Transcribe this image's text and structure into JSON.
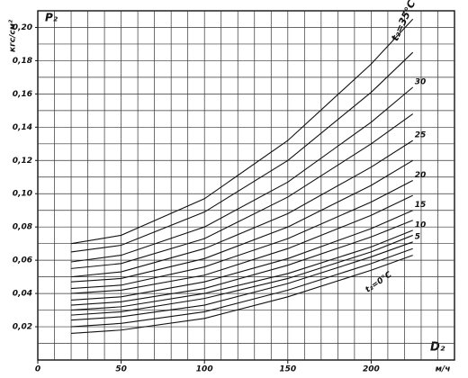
{
  "chart_data": {
    "type": "line",
    "y_label": "кгс/см²",
    "y_symbol": "P₂",
    "x_label": "D₂",
    "x_unit": "м/ч",
    "x": [
      20,
      50,
      100,
      150,
      200,
      225
    ],
    "xlim": [
      0,
      250
    ],
    "ylim": [
      0,
      0.21
    ],
    "xticks": [
      0,
      50,
      100,
      150,
      200
    ],
    "yticks": [
      {
        "value": 0.02,
        "label": "0,02"
      },
      {
        "value": 0.04,
        "label": "0,04"
      },
      {
        "value": 0.06,
        "label": "0,06"
      },
      {
        "value": 0.08,
        "label": "0,08"
      },
      {
        "value": 0.1,
        "label": "0,10"
      },
      {
        "value": 0.12,
        "label": "0,12"
      },
      {
        "value": 0.14,
        "label": "0,14"
      },
      {
        "value": 0.16,
        "label": "0,16"
      },
      {
        "value": 0.18,
        "label": "0,18"
      },
      {
        "value": 0.2,
        "label": "0,20"
      }
    ],
    "x_grid": [
      10,
      20,
      30,
      40,
      50,
      60,
      70,
      80,
      90,
      100,
      110,
      120,
      130,
      140,
      150,
      160,
      170,
      180,
      190,
      200,
      210,
      220,
      230,
      240
    ],
    "y_grid": [
      0.01,
      0.02,
      0.03,
      0.04,
      0.05,
      0.06,
      0.07,
      0.08,
      0.09,
      0.1,
      0.11,
      0.12,
      0.13,
      0.14,
      0.15,
      0.16,
      0.17,
      0.18,
      0.19,
      0.2
    ],
    "grid": true,
    "color": "#111111",
    "series": [
      {
        "name": "t₂=0°C",
        "values": [
          0.016,
          0.018,
          0.025,
          0.038,
          0.054,
          0.063
        ]
      },
      {
        "values": [
          0.02,
          0.022,
          0.029,
          0.042,
          0.058,
          0.067
        ]
      },
      {
        "name": "5",
        "values": [
          0.024,
          0.026,
          0.033,
          0.046,
          0.062,
          0.071
        ]
      },
      {
        "values": [
          0.027,
          0.029,
          0.037,
          0.049,
          0.065,
          0.075
        ]
      },
      {
        "name": "10",
        "values": [
          0.03,
          0.032,
          0.04,
          0.052,
          0.068,
          0.078
        ]
      },
      {
        "values": [
          0.033,
          0.035,
          0.043,
          0.057,
          0.074,
          0.084
        ]
      },
      {
        "name": "15",
        "values": [
          0.036,
          0.038,
          0.047,
          0.061,
          0.079,
          0.09
        ]
      },
      {
        "values": [
          0.04,
          0.042,
          0.051,
          0.067,
          0.087,
          0.099
        ]
      },
      {
        "name": "20",
        "values": [
          0.043,
          0.045,
          0.056,
          0.073,
          0.095,
          0.108
        ]
      },
      {
        "values": [
          0.047,
          0.049,
          0.061,
          0.08,
          0.105,
          0.12
        ]
      },
      {
        "name": "25",
        "values": [
          0.05,
          0.053,
          0.067,
          0.088,
          0.116,
          0.132
        ]
      },
      {
        "values": [
          0.055,
          0.058,
          0.073,
          0.098,
          0.13,
          0.148
        ]
      },
      {
        "name": "30",
        "values": [
          0.059,
          0.063,
          0.08,
          0.107,
          0.143,
          0.164
        ]
      },
      {
        "values": [
          0.065,
          0.069,
          0.089,
          0.12,
          0.161,
          0.185
        ]
      },
      {
        "name": "t₂=35°C",
        "values": [
          0.07,
          0.075,
          0.097,
          0.132,
          0.178,
          0.205
        ]
      }
    ]
  }
}
